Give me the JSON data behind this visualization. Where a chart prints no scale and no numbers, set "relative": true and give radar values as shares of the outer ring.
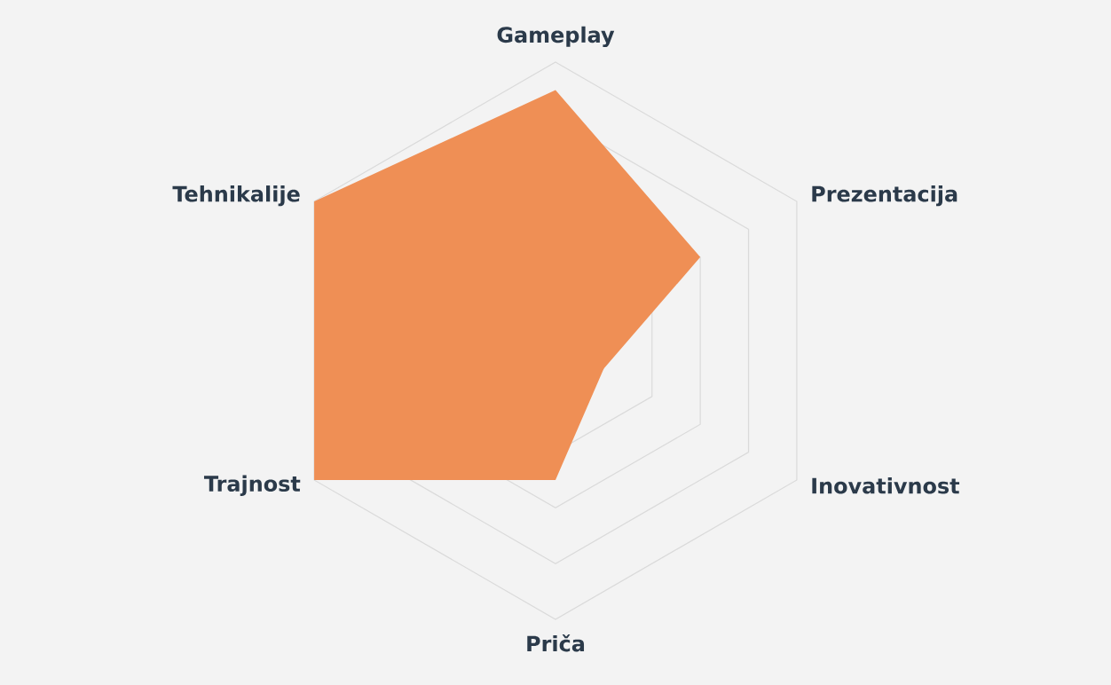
{
  "chart_data": {
    "type": "radar",
    "relative": true,
    "grid": true,
    "categories": [
      "Gameplay",
      "Prezentacija",
      "Inovativnost",
      "Priča",
      "Trajnost",
      "Tehnikalije"
    ],
    "series": [
      {
        "color": "#ef8f55",
        "values": [
          0.9,
          0.6,
          0.2,
          0.5,
          1.0,
          1.0
        ]
      }
    ]
  }
}
